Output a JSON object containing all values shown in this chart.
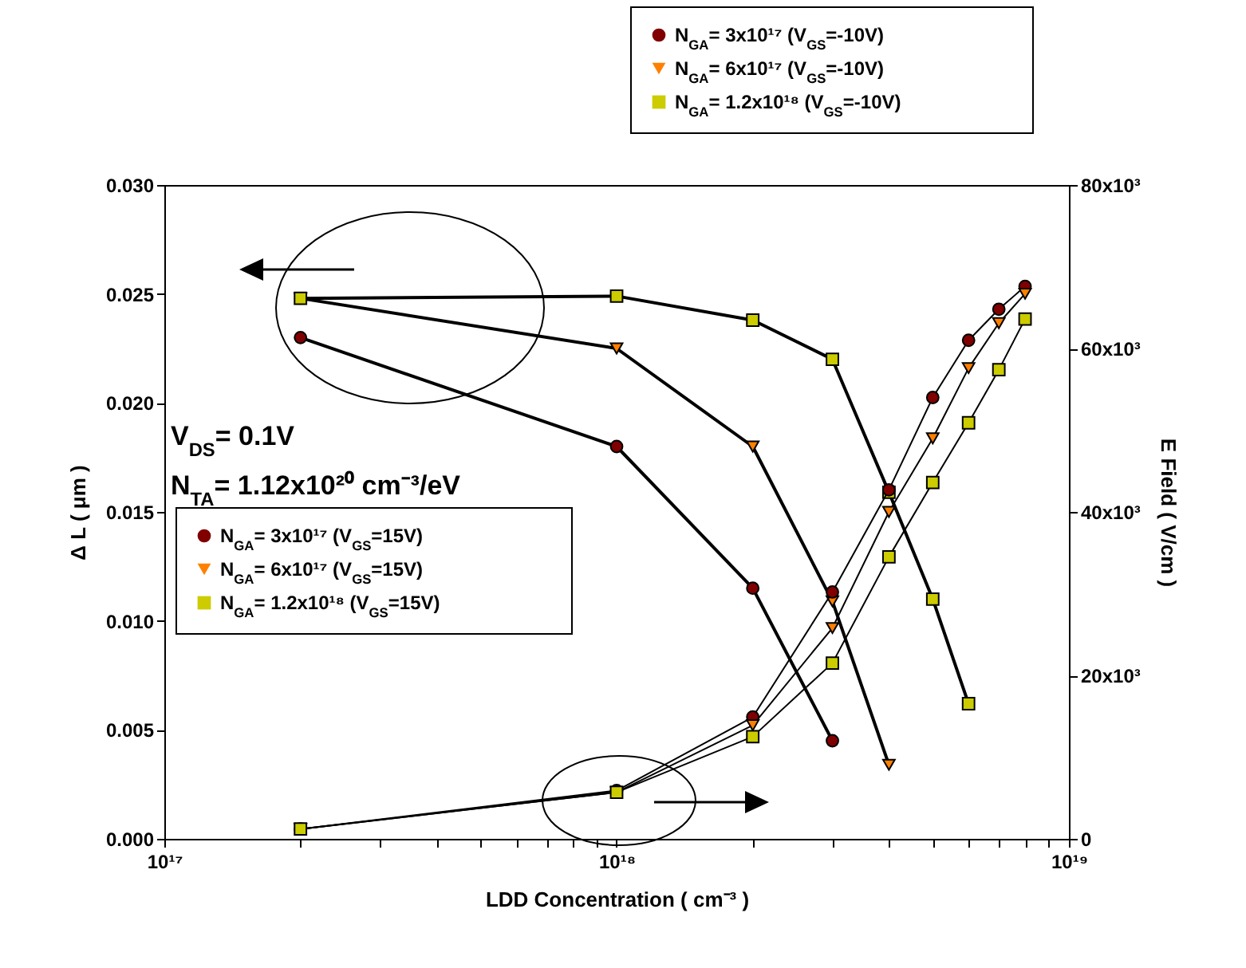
{
  "chart_data": {
    "type": "line",
    "xlabel": "LDD Concentration ( cm⁻³ )",
    "ylabel": "Δ L ( μm )",
    "y2label": "E Field ( V/cm )",
    "log": "x",
    "legend": "top left",
    "annotations": [
      "V$_{DS}$= 0.1V",
      "N$_{TA}$= 1.12x10²⁰ cm⁻³/eV"
    ],
    "xlim": [
      1e+17,
      1e+19
    ],
    "xticks": [
      {
        "value": 1e+17,
        "label": "10¹⁷"
      },
      {
        "value": 2e+17,
        "label": null
      },
      {
        "value": 3e+17,
        "label": null
      },
      {
        "value": 4e+17,
        "label": null
      },
      {
        "value": 5e+17,
        "label": null
      },
      {
        "value": 6e+17,
        "label": null
      },
      {
        "value": 7e+17,
        "label": null
      },
      {
        "value": 8e+17,
        "label": null
      },
      {
        "value": 9e+17,
        "label": null
      },
      {
        "value": 1e+18,
        "label": "10¹⁸"
      },
      {
        "value": 2e+18,
        "label": null
      },
      {
        "value": 3e+18,
        "label": null
      },
      {
        "value": 4e+18,
        "label": null
      },
      {
        "value": 5e+18,
        "label": null
      },
      {
        "value": 6e+18,
        "label": null
      },
      {
        "value": 7e+18,
        "label": null
      },
      {
        "value": 8e+18,
        "label": null
      },
      {
        "value": 9e+18,
        "label": null
      },
      {
        "value": 1e+19,
        "label": "10¹⁹"
      }
    ],
    "ylim": [
      0,
      0.03
    ],
    "yticks": [
      {
        "value": 0,
        "label": "0.000"
      },
      {
        "value": 0.005,
        "label": "0.005"
      },
      {
        "value": 0.01,
        "label": "0.010"
      },
      {
        "value": 0.015,
        "label": "0.015"
      },
      {
        "value": 0.02,
        "label": "0.020"
      },
      {
        "value": 0.025,
        "label": "0.025"
      },
      {
        "value": 0.03,
        "label": "0.030"
      }
    ],
    "y2lim": [
      0,
      80000
    ],
    "y2ticks": [
      0,
      {
        "value": 20000,
        "label": "20x10³"
      },
      {
        "value": 40000,
        "label": "40x10³"
      },
      {
        "value": 60000,
        "label": "60x10³"
      },
      {
        "value": 80000,
        "label": "80x10³"
      }
    ],
    "series": [
      {
        "name": "N$_{GA}$= 3x10¹⁷ (V$_{GS}$=-10V)",
        "color": "#800000",
        "marker": "circle",
        "axis": "y2",
        "x": [
          2e+17,
          1e+18,
          2e+18,
          3e+18,
          4e+18,
          5e+18,
          6e+18,
          7e+18,
          8e+18
        ],
        "values": [
          1200,
          5900,
          14900,
          30200,
          42700,
          54000,
          61000,
          64800,
          67600
        ]
      },
      {
        "name": "N$_{GA}$= 6x10¹⁷ (V$_{GS}$=-10V)",
        "color": "#ff8000",
        "marker": "triangle",
        "axis": "y2",
        "x": [
          2e+17,
          1e+18,
          2e+18,
          3e+18,
          4e+18,
          5e+18,
          6e+18,
          7e+18,
          8e+18
        ],
        "values": [
          1200,
          5700,
          13900,
          25800,
          40000,
          49000,
          57600,
          63100,
          66700
        ]
      },
      {
        "name": "N$_{GA}$= 1.2x10¹⁸ (V$_{GS}$=-10V)",
        "color": "#cccc00",
        "marker": "square",
        "axis": "y2",
        "x": [
          2e+17,
          1e+18,
          2e+18,
          3e+18,
          4e+18,
          5e+18,
          6e+18,
          7e+18,
          8e+18
        ],
        "values": [
          1200,
          5700,
          12500,
          21500,
          34500,
          43600,
          50900,
          57400,
          63600
        ]
      },
      {
        "name": "N$_{GA}$= 3x10¹⁷ (V$_{GS}$=15V)",
        "color": "#800000",
        "marker": "circle",
        "axis": "y",
        "x": [
          2e+17,
          1e+18,
          2e+18,
          3e+18
        ],
        "values": [
          0.023,
          0.018,
          0.0115,
          0.0045
        ]
      },
      {
        "name": "N$_{GA}$= 6x10¹⁷ (V$_{GS}$=15V)",
        "color": "#ff8000",
        "marker": "triangle",
        "axis": "y",
        "x": [
          2e+17,
          1e+18,
          2e+18,
          3e+18,
          4e+18
        ],
        "values": [
          0.0248,
          0.0225,
          0.018,
          0.0109,
          0.0034
        ]
      },
      {
        "name": "N$_{GA}$= 1.2x10¹⁸ (V$_{GS}$=15V)",
        "color": "#cccc00",
        "marker": "square",
        "axis": "y",
        "x": [
          2e+17,
          1e+18,
          2e+18,
          3e+18,
          4e+18,
          5e+18,
          6e+18
        ],
        "values": [
          0.0248,
          0.0249,
          0.0238,
          0.022,
          0.0159,
          0.011,
          0.0062
        ]
      }
    ]
  }
}
